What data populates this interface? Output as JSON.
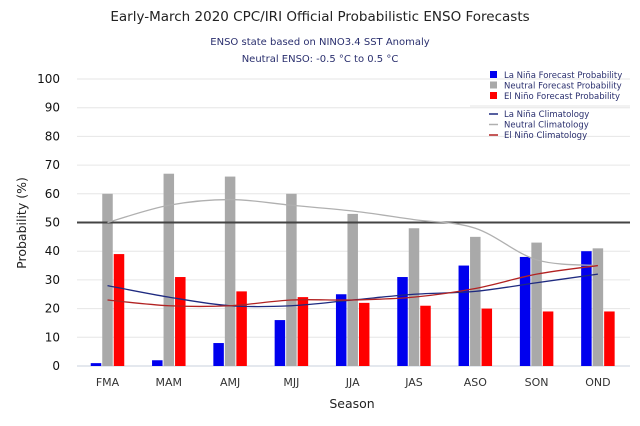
{
  "chart_data": {
    "type": "bar",
    "title": "Early-March 2020 CPC/IRI Official Probabilistic ENSO Forecasts",
    "subtitle": [
      "ENSO state based on NINO3.4 SST Anomaly",
      "Neutral ENSO: -0.5 °C to 0.5 °C"
    ],
    "xlabel": "Season",
    "ylabel": "Probability (%)",
    "ylim": [
      0,
      100
    ],
    "yticks": [
      0,
      10,
      20,
      30,
      40,
      50,
      60,
      70,
      80,
      90,
      100
    ],
    "grid": true,
    "reference_line": 50,
    "legend_position": "top-right",
    "categories": [
      "FMA",
      "MAM",
      "AMJ",
      "MJJ",
      "JJA",
      "JAS",
      "ASO",
      "SON",
      "OND"
    ],
    "series": [
      {
        "name": "La Niña Forecast Probability",
        "kind": "bar",
        "color": "#0000ee",
        "values": [
          1,
          2,
          8,
          16,
          25,
          31,
          35,
          38,
          40
        ]
      },
      {
        "name": "Neutral Forecast Probability",
        "kind": "bar",
        "color": "#a9a9a9",
        "values": [
          60,
          67,
          66,
          60,
          53,
          48,
          45,
          43,
          41
        ]
      },
      {
        "name": "El Niño Forecast Probability",
        "kind": "bar",
        "color": "#ff0000",
        "values": [
          39,
          31,
          26,
          24,
          22,
          21,
          20,
          19,
          19
        ]
      }
    ],
    "lines": [
      {
        "name": "La Niña Climatology",
        "kind": "line",
        "color": "#1e2a80",
        "values": [
          28,
          24,
          21,
          21,
          23,
          25,
          26,
          29,
          32
        ]
      },
      {
        "name": "Neutral Climatology",
        "kind": "line",
        "color": "#b0b0b0",
        "values": [
          50,
          56,
          58,
          56,
          54,
          51,
          48,
          37,
          35
        ]
      },
      {
        "name": "El Niño Climatology",
        "kind": "line",
        "color": "#b22222",
        "values": [
          23,
          21,
          21,
          23,
          23,
          24,
          27,
          32,
          35
        ]
      }
    ]
  }
}
